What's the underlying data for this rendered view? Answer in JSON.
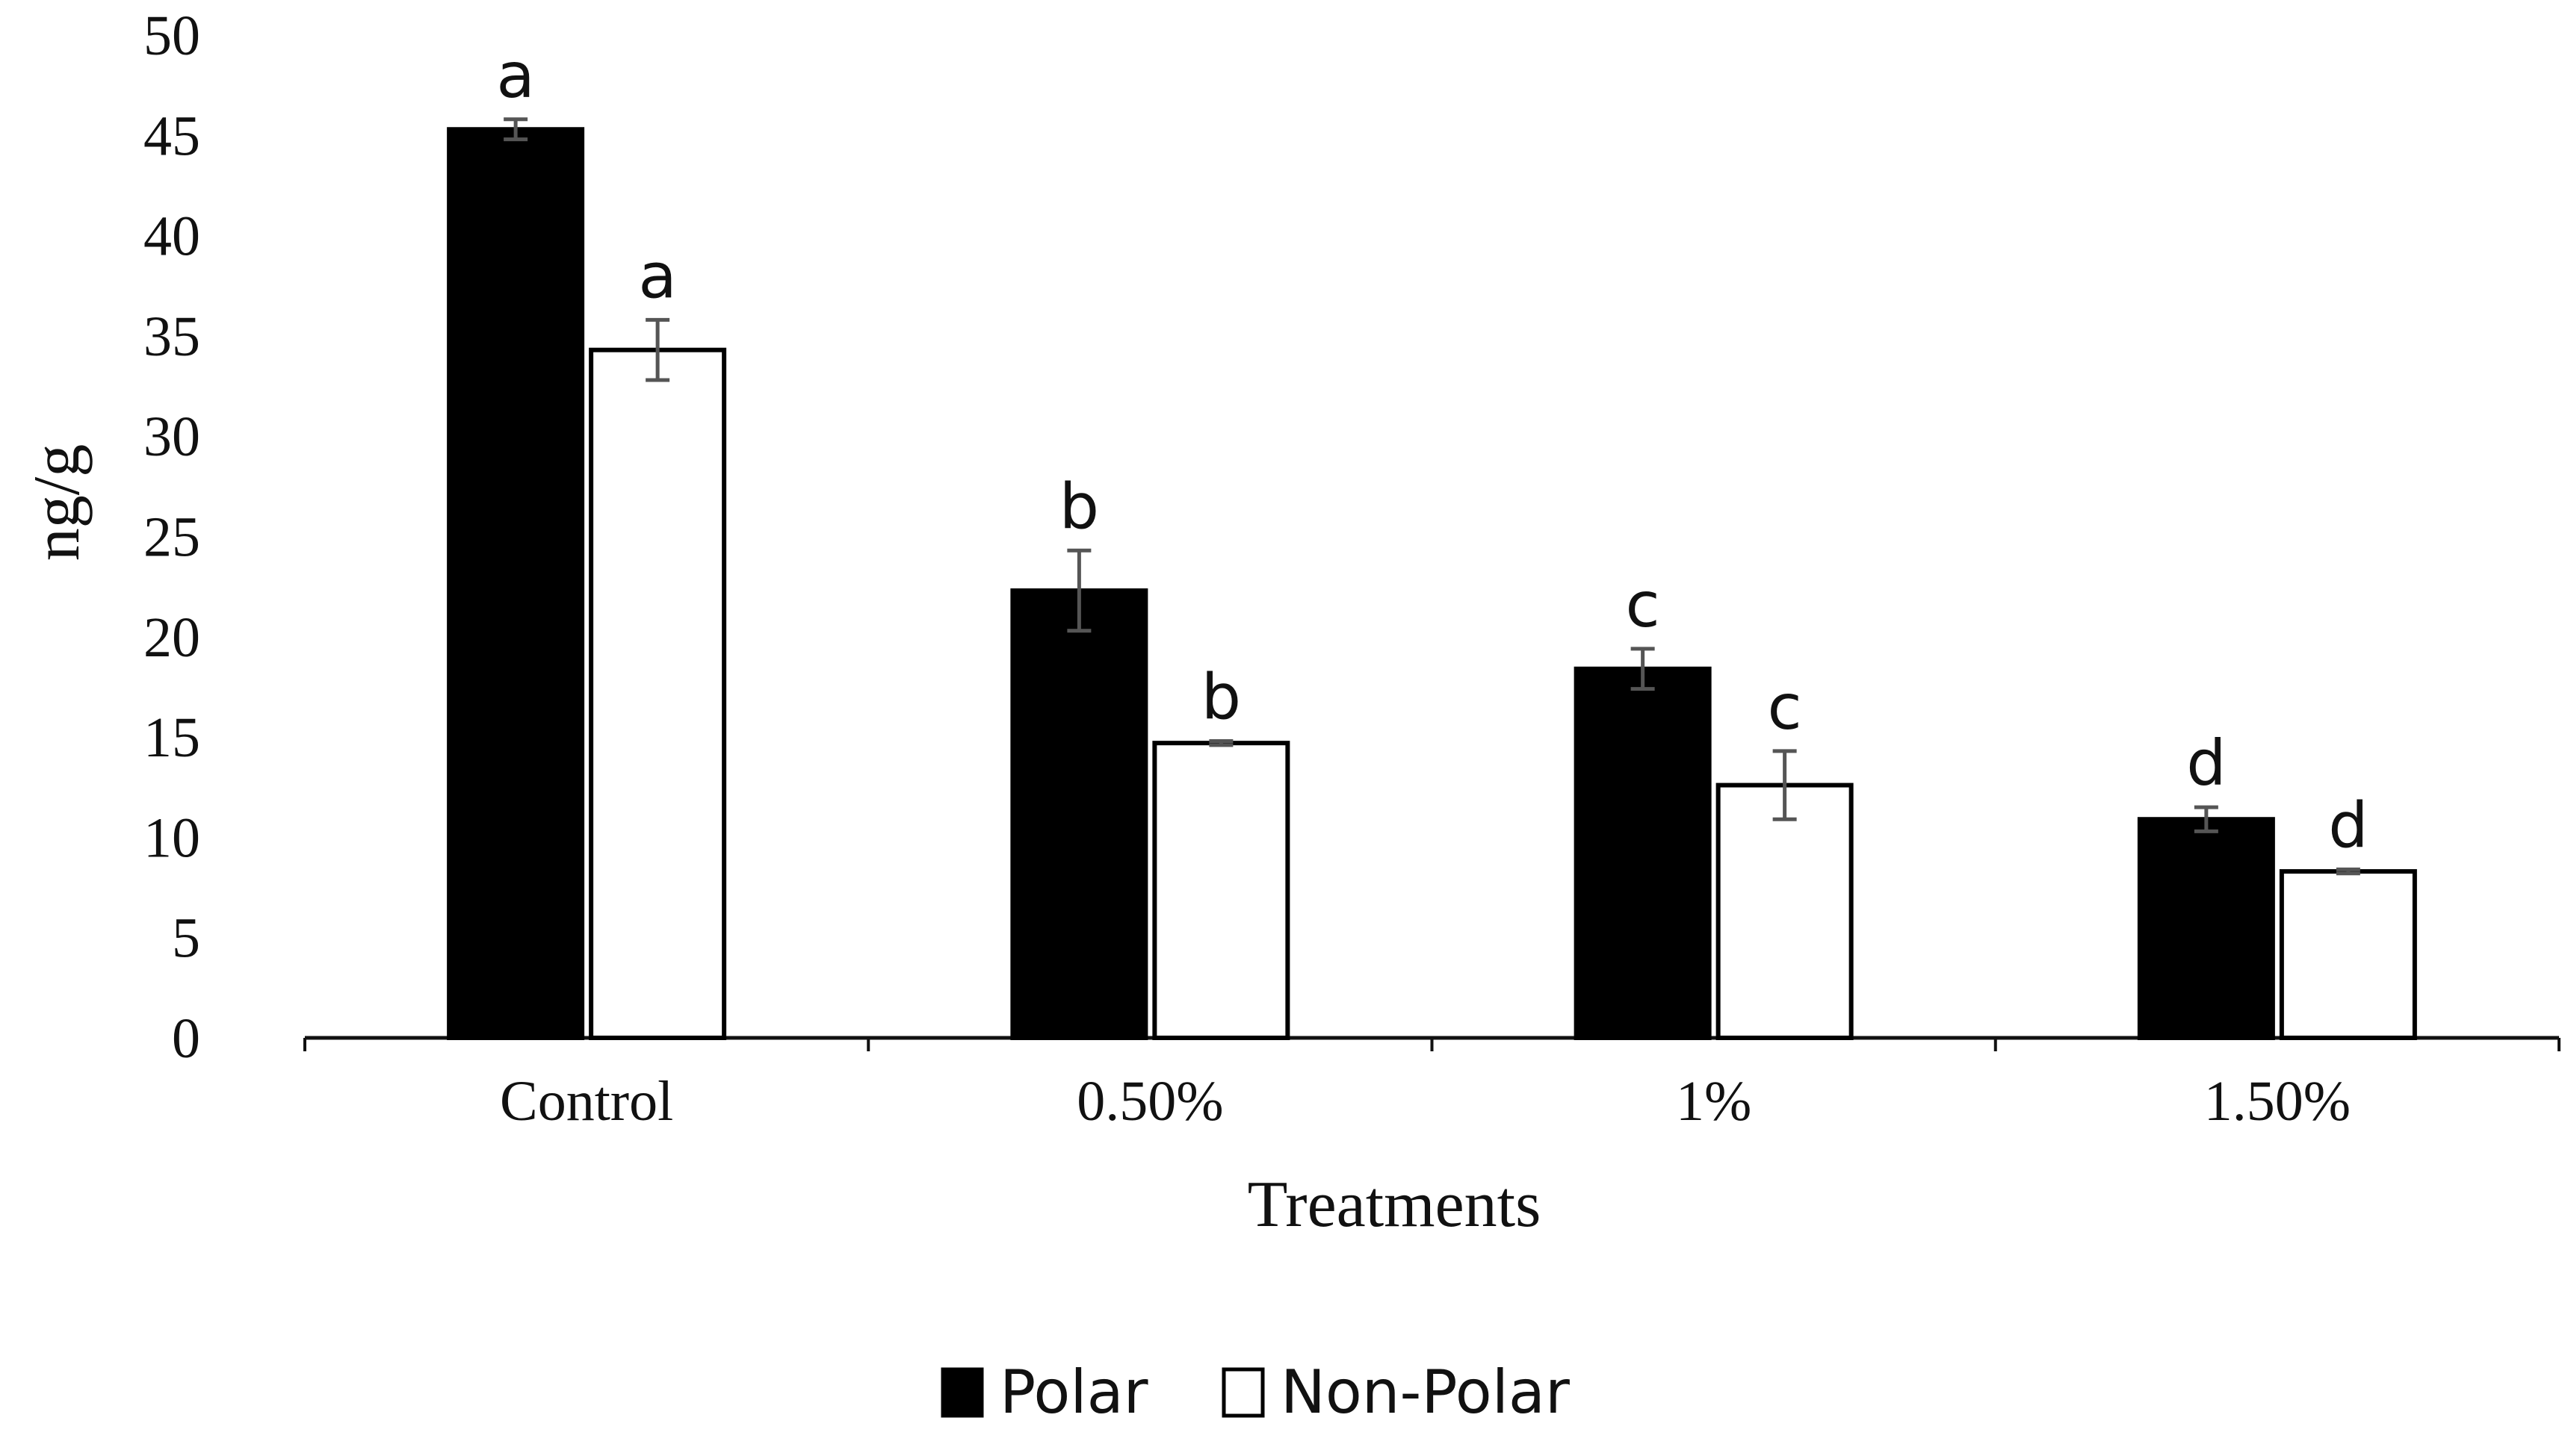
{
  "chart_data": {
    "type": "bar",
    "title": "",
    "xlabel": "Treatments",
    "ylabel": "ng/g",
    "ylim": [
      0,
      50
    ],
    "yticks": [
      0,
      5,
      10,
      15,
      20,
      25,
      30,
      35,
      40,
      45,
      50
    ],
    "grid": false,
    "categories": [
      "Control",
      "0.50%",
      "1%",
      "1.50%"
    ],
    "series": [
      {
        "name": "Polar",
        "fill": "#000000",
        "values": [
          45.3,
          22.3,
          18.4,
          10.9
        ],
        "errors": [
          0.5,
          2.0,
          1.0,
          0.6
        ],
        "labels": [
          "a",
          "b",
          "c",
          "d"
        ]
      },
      {
        "name": "Non-Polar",
        "fill": "#ffffff",
        "values": [
          34.3,
          14.7,
          12.6,
          8.3
        ],
        "errors": [
          1.5,
          0.1,
          1.7,
          0.1
        ],
        "labels": [
          "a",
          "b",
          "c",
          "d"
        ]
      }
    ],
    "legend": {
      "position": "bottom-center"
    }
  }
}
